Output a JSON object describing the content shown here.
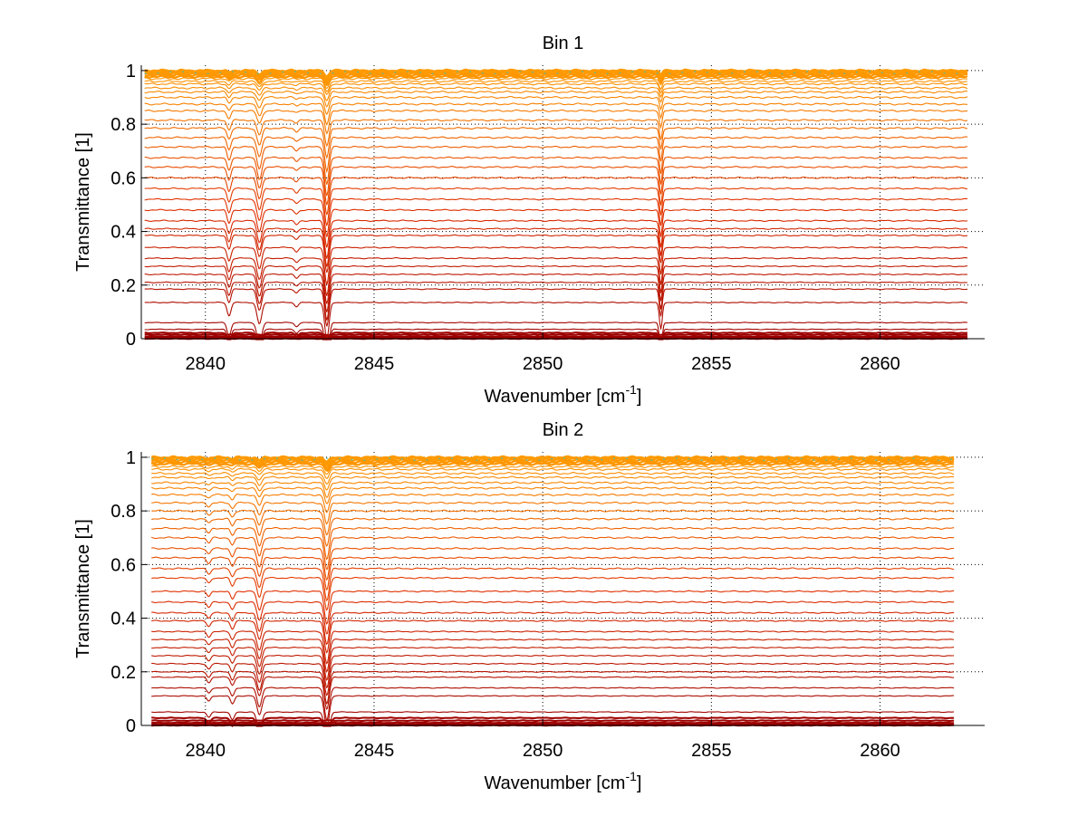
{
  "colors": {
    "background": "#ffffff",
    "axis": "#000000",
    "grid": "#000000",
    "series_low": "#9b0000",
    "series_mid": "#e03000",
    "series_high": "#ff9a00",
    "series_top_noise": "#33c0c0"
  },
  "chart_data": [
    {
      "type": "line",
      "title": "Bin 1",
      "xlabel": "Wavenumber [cm",
      "xlabel_sup": "-1",
      "xlabel_end": "]",
      "ylabel": "Transmittance [1]",
      "xlim": [
        2838.1,
        2863.1
      ],
      "ylim": [
        0,
        1.02
      ],
      "xticks": [
        2840,
        2845,
        2850,
        2855,
        2860
      ],
      "xtick_labels": [
        "2840",
        "2845",
        "2850",
        "2855",
        "2860"
      ],
      "yticks": [
        0,
        0.2,
        0.4,
        0.6,
        0.8,
        1
      ],
      "ytick_labels": [
        "0",
        "0.2",
        "0.4",
        "0.6",
        "0.8",
        "1"
      ],
      "grid": true,
      "grid_style": "dotted",
      "legend": "none",
      "x_range": [
        2838.2,
        2862.6
      ],
      "series_levels": [
        0.0,
        0.003,
        0.008,
        0.015,
        0.022,
        0.035,
        0.06,
        0.135,
        0.185,
        0.21,
        0.24,
        0.27,
        0.3,
        0.34,
        0.385,
        0.41,
        0.44,
        0.48,
        0.52,
        0.56,
        0.6,
        0.64,
        0.675,
        0.715,
        0.75,
        0.785,
        0.815,
        0.85,
        0.875,
        0.9,
        0.92,
        0.935,
        0.95,
        0.96,
        0.97,
        0.977,
        0.983,
        0.988,
        0.992,
        0.995,
        0.998,
        1.0
      ],
      "absorption_lines": [
        {
          "x": 2840.7,
          "depth": 0.05,
          "width": 0.08
        },
        {
          "x": 2841.6,
          "depth": 0.08,
          "width": 0.1
        },
        {
          "x": 2842.7,
          "depth": 0.015,
          "width": 0.08
        },
        {
          "x": 2843.6,
          "depth": 0.14,
          "width": 0.09
        },
        {
          "x": 2853.5,
          "depth": 0.1,
          "width": 0.06
        }
      ]
    },
    {
      "type": "line",
      "title": "Bin 2",
      "xlabel": "Wavenumber [cm",
      "xlabel_sup": "-1",
      "xlabel_end": "]",
      "ylabel": "Transmittance [1]",
      "xlim": [
        2838.1,
        2863.1
      ],
      "ylim": [
        0,
        1.02
      ],
      "xticks": [
        2840,
        2845,
        2850,
        2855,
        2860
      ],
      "xtick_labels": [
        "2840",
        "2845",
        "2850",
        "2855",
        "2860"
      ],
      "yticks": [
        0,
        0.2,
        0.4,
        0.6,
        0.8,
        1
      ],
      "ytick_labels": [
        "0",
        "0.2",
        "0.4",
        "0.6",
        "0.8",
        "1"
      ],
      "grid": true,
      "grid_style": "dotted",
      "legend": "none",
      "x_range": [
        2838.4,
        2862.2
      ],
      "series_levels": [
        0.0,
        0.004,
        0.01,
        0.018,
        0.028,
        0.05,
        0.11,
        0.14,
        0.18,
        0.2,
        0.23,
        0.26,
        0.29,
        0.32,
        0.35,
        0.39,
        0.42,
        0.46,
        0.5,
        0.55,
        0.585,
        0.625,
        0.66,
        0.7,
        0.735,
        0.77,
        0.8,
        0.83,
        0.86,
        0.885,
        0.905,
        0.925,
        0.94,
        0.955,
        0.965,
        0.975,
        0.982,
        0.988,
        0.993,
        0.997,
        1.0
      ],
      "absorption_lines": [
        {
          "x": 2840.1,
          "depth": 0.02,
          "width": 0.08
        },
        {
          "x": 2840.8,
          "depth": 0.03,
          "width": 0.08
        },
        {
          "x": 2841.6,
          "depth": 0.07,
          "width": 0.1
        },
        {
          "x": 2843.6,
          "depth": 0.12,
          "width": 0.1
        }
      ]
    }
  ]
}
